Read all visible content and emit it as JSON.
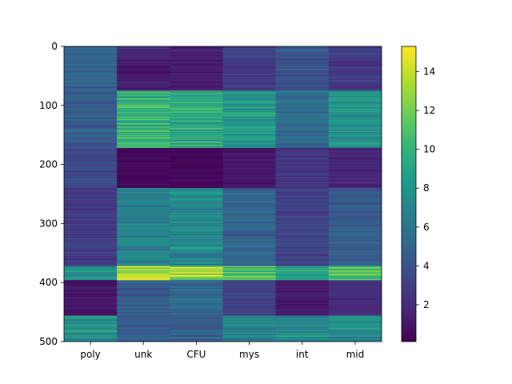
{
  "chart_data": {
    "type": "heatmap",
    "title": "",
    "xlabel": "",
    "ylabel": "",
    "columns": [
      "poly",
      "unk",
      "CFU",
      "mys",
      "int",
      "mid"
    ],
    "row_count": 500,
    "y_ticks": [
      0,
      100,
      200,
      300,
      400,
      500
    ],
    "ylim": [
      500,
      0
    ],
    "colormap": "viridis",
    "colorbar": {
      "min": 0.1,
      "max": 15.3,
      "ticks": [
        2,
        4,
        6,
        8,
        10,
        12,
        14
      ]
    },
    "grid": false,
    "legend": "none",
    "row_blocks": [
      {
        "rows": [
          0,
          20
        ],
        "values": [
          5.5,
          1.8,
          1.5,
          3.0,
          4.2,
          3.0
        ]
      },
      {
        "rows": [
          20,
          75
        ],
        "values": [
          4.8,
          1.2,
          1.3,
          2.8,
          4.0,
          2.6
        ]
      },
      {
        "rows": [
          75,
          172
        ],
        "values": [
          4.5,
          9.8,
          9.4,
          8.0,
          5.5,
          7.8
        ]
      },
      {
        "rows": [
          172,
          240
        ],
        "values": [
          3.4,
          0.4,
          0.3,
          1.0,
          2.5,
          1.7
        ]
      },
      {
        "rows": [
          240,
          372
        ],
        "values": [
          2.8,
          6.8,
          7.2,
          5.0,
          3.2,
          4.5
        ]
      },
      {
        "rows": [
          372,
          396
        ],
        "values": [
          7.5,
          13.2,
          13.6,
          11.0,
          8.5,
          10.8
        ]
      },
      {
        "rows": [
          396,
          456
        ],
        "values": [
          0.9,
          4.5,
          5.0,
          3.0,
          1.1,
          2.2
        ]
      },
      {
        "rows": [
          456,
          500
        ],
        "values": [
          8.2,
          4.6,
          4.8,
          6.8,
          7.5,
          7.4
        ]
      }
    ]
  }
}
